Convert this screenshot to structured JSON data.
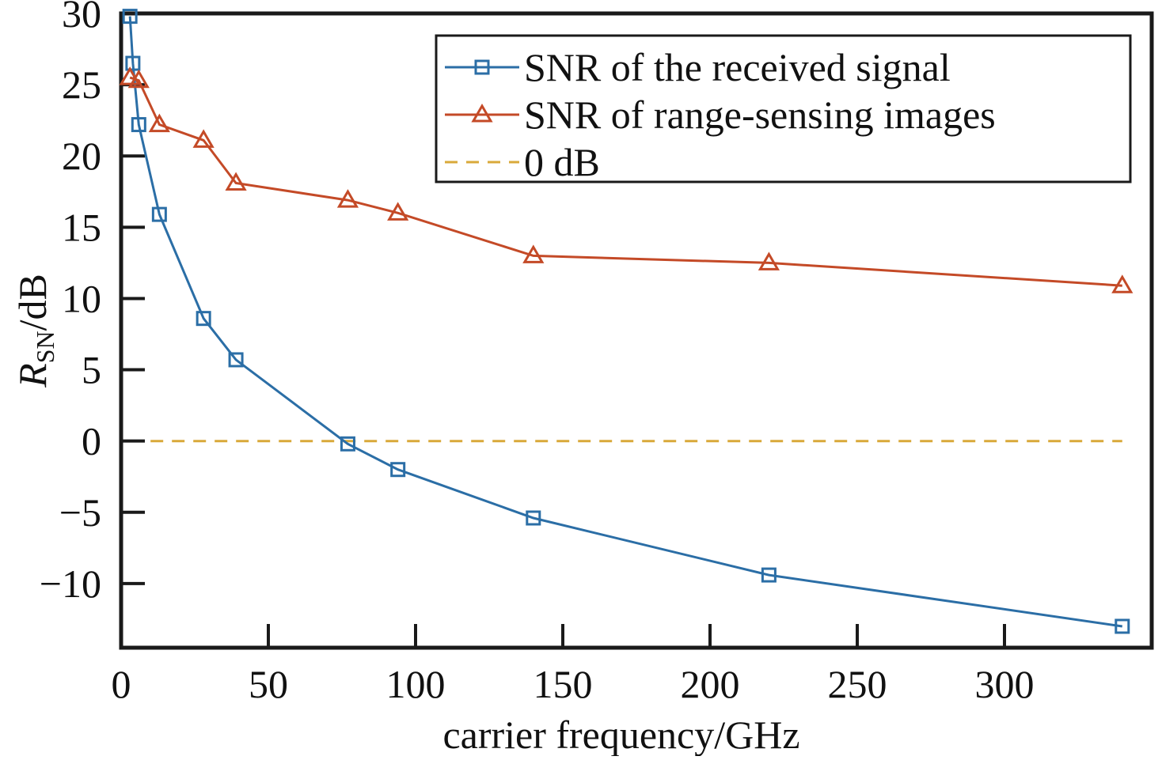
{
  "chart_data": {
    "type": "line",
    "xlabel": "carrier frequency/GHz",
    "ylabel": {
      "main": "R",
      "subscript": "SN",
      "suffix": "/dB"
    },
    "xlim": [
      0,
      350
    ],
    "ylim": [
      -14.5,
      30
    ],
    "xticks": [
      0,
      50,
      100,
      150,
      200,
      250,
      300
    ],
    "yticks": [
      -10,
      -5,
      0,
      5,
      10,
      15,
      20,
      25,
      30
    ],
    "ytick_labels": [
      "−10",
      "−5",
      "0",
      "5",
      "10",
      "15",
      "20",
      "25",
      "30"
    ],
    "grid": false,
    "legend_position": "top-right",
    "series": [
      {
        "name": "SNR of the received signal",
        "color": "#2b6ea6",
        "marker": "square",
        "line_style": "solid",
        "x": [
          3,
          4,
          6,
          13,
          28,
          39,
          77,
          94,
          140,
          220,
          340
        ],
        "y": [
          29.8,
          26.5,
          22.2,
          15.9,
          8.6,
          5.7,
          -0.2,
          -2.0,
          -5.4,
          -9.4,
          -13.0
        ]
      },
      {
        "name": "SNR of range-sensing images",
        "color": "#c44a27",
        "marker": "triangle",
        "line_style": "solid",
        "x": [
          3,
          6,
          13,
          28,
          39,
          77,
          94,
          140,
          220,
          340
        ],
        "y": [
          25.5,
          25.3,
          22.2,
          21.1,
          18.1,
          16.9,
          16.0,
          13.0,
          12.5,
          10.9
        ]
      },
      {
        "name": "0 dB",
        "color": "#d9a93a",
        "marker": "none",
        "line_style": "dashed",
        "x": [
          10,
          340
        ],
        "y": [
          0,
          0
        ]
      }
    ]
  }
}
